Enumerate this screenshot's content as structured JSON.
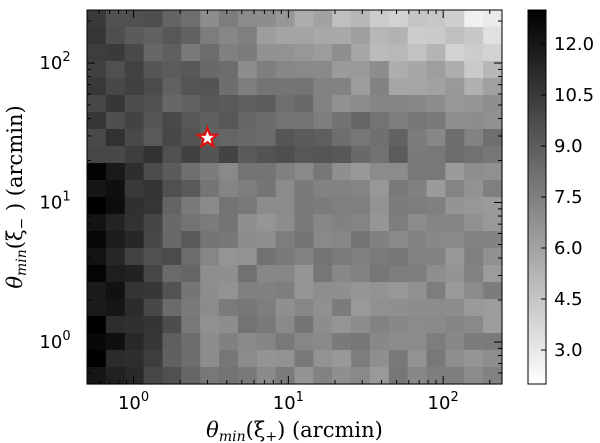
{
  "chart_data": {
    "type": "heatmap",
    "title": "",
    "xlabel": "θmin(ξ+) (arcmin)",
    "ylabel": "θmin(ξ−) (arcmin)",
    "xlabel_parts": {
      "theta": "θ",
      "sub": "min",
      "open": "(ξ",
      "sign": "+",
      "close": ") (arcmin)"
    },
    "ylabel_parts": {
      "theta": "θ",
      "sub": "min",
      "open": "(ξ",
      "sign": "−",
      "close": " ) (arcmin)"
    },
    "x_scale": "log",
    "y_scale": "log",
    "xlim": [
      0.5,
      240
    ],
    "ylim": [
      0.5,
      240
    ],
    "x_ticks": [
      {
        "value": 1,
        "base": "10",
        "exp": "0"
      },
      {
        "value": 10,
        "base": "10",
        "exp": "1"
      },
      {
        "value": 100,
        "base": "10",
        "exp": "2"
      }
    ],
    "y_ticks": [
      {
        "value": 1,
        "base": "10",
        "exp": "0"
      },
      {
        "value": 10,
        "base": "10",
        "exp": "1"
      },
      {
        "value": 100,
        "base": "10",
        "exp": "2"
      }
    ],
    "grid_shape": [
      22,
      22
    ],
    "z_range": [
      2.0,
      13.0
    ],
    "colorbar": {
      "ticks": [
        3.0,
        4.5,
        6.0,
        7.5,
        9.0,
        10.5,
        12.0
      ],
      "tick_labels": [
        "3.0",
        "4.5",
        "6.0",
        "7.5",
        "9.0",
        "10.5",
        "12.0"
      ],
      "colormap": "gray_r",
      "low_color": "#ffffff",
      "high_color": "#000000"
    },
    "marker": {
      "type": "star",
      "x": 3.0,
      "y": 29.0,
      "fill": "#ffffff",
      "stroke": "#dd1111"
    }
  }
}
